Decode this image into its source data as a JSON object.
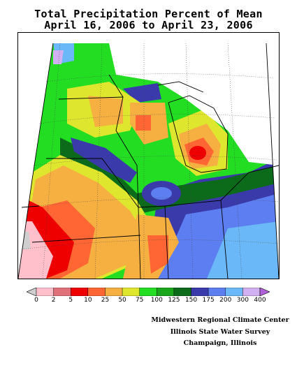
{
  "title_line1": "Total Precipitation Percent of Mean",
  "title_line2": "April 16, 2006 to April 23, 2006",
  "legend": {
    "ticks": [
      "0",
      "2",
      "5",
      "10",
      "25",
      "50",
      "75",
      "100",
      "125",
      "150",
      "175",
      "200",
      "300",
      "400"
    ],
    "colors": [
      "#cfcfcf",
      "#ffc0cb",
      "#e0707a",
      "#ee0000",
      "#ff6633",
      "#f5b041",
      "#dfe62e",
      "#22dd22",
      "#1aa61a",
      "#0b6b1b",
      "#3a3aaa",
      "#5d7ef0",
      "#6ab8f7",
      "#d0b0f0",
      "#b060d8"
    ]
  },
  "credits": {
    "line1": "Midwestern Regional Climate Center",
    "line2": "Illinois State Water Survey",
    "line3": "Champaign, Illinois"
  }
}
